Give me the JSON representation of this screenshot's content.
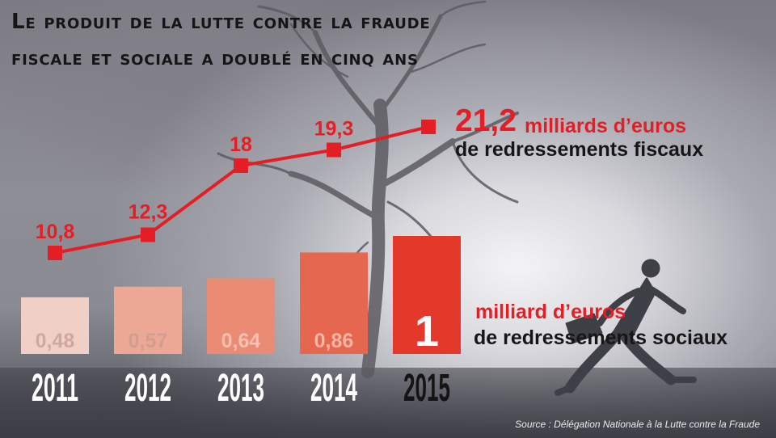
{
  "title_lines": [
    "Le produit de la lutte contre la fraude",
    "fiscale et sociale a doublé en cinq ans"
  ],
  "fiscal_annotation": {
    "value": "21,2",
    "unit": "milliards d’euros",
    "description": "de redressements fiscaux"
  },
  "social_annotation": {
    "unit": "milliard d’euros",
    "description": "de redressements sociaux"
  },
  "source": "Source : Délégation Nationale à la Lutte contre la Fraude",
  "colors": {
    "accent_red": "#e31e24",
    "bar_shades": [
      "#f0cfc6",
      "#eda795",
      "#ea8c74",
      "#e5674f",
      "#e3382a"
    ]
  },
  "chart_data": [
    {
      "type": "line",
      "series": [
        {
          "name": "redressements fiscaux",
          "x": [
            "2011",
            "2012",
            "2013",
            "2014",
            "2015"
          ],
          "values": [
            10.8,
            12.3,
            18,
            19.3,
            21.2
          ],
          "value_labels": [
            "10,8",
            "12,3",
            "18",
            "19,3",
            ""
          ]
        }
      ],
      "ylim": [
        10,
        22
      ]
    },
    {
      "type": "bar",
      "categories": [
        "2011",
        "2012",
        "2013",
        "2014",
        "2015"
      ],
      "values": [
        0.48,
        0.57,
        0.64,
        0.86,
        1
      ],
      "value_labels": [
        "0,48",
        "0,57",
        "0,64",
        "0,86",
        "1"
      ],
      "ylim": [
        0,
        1
      ]
    }
  ]
}
